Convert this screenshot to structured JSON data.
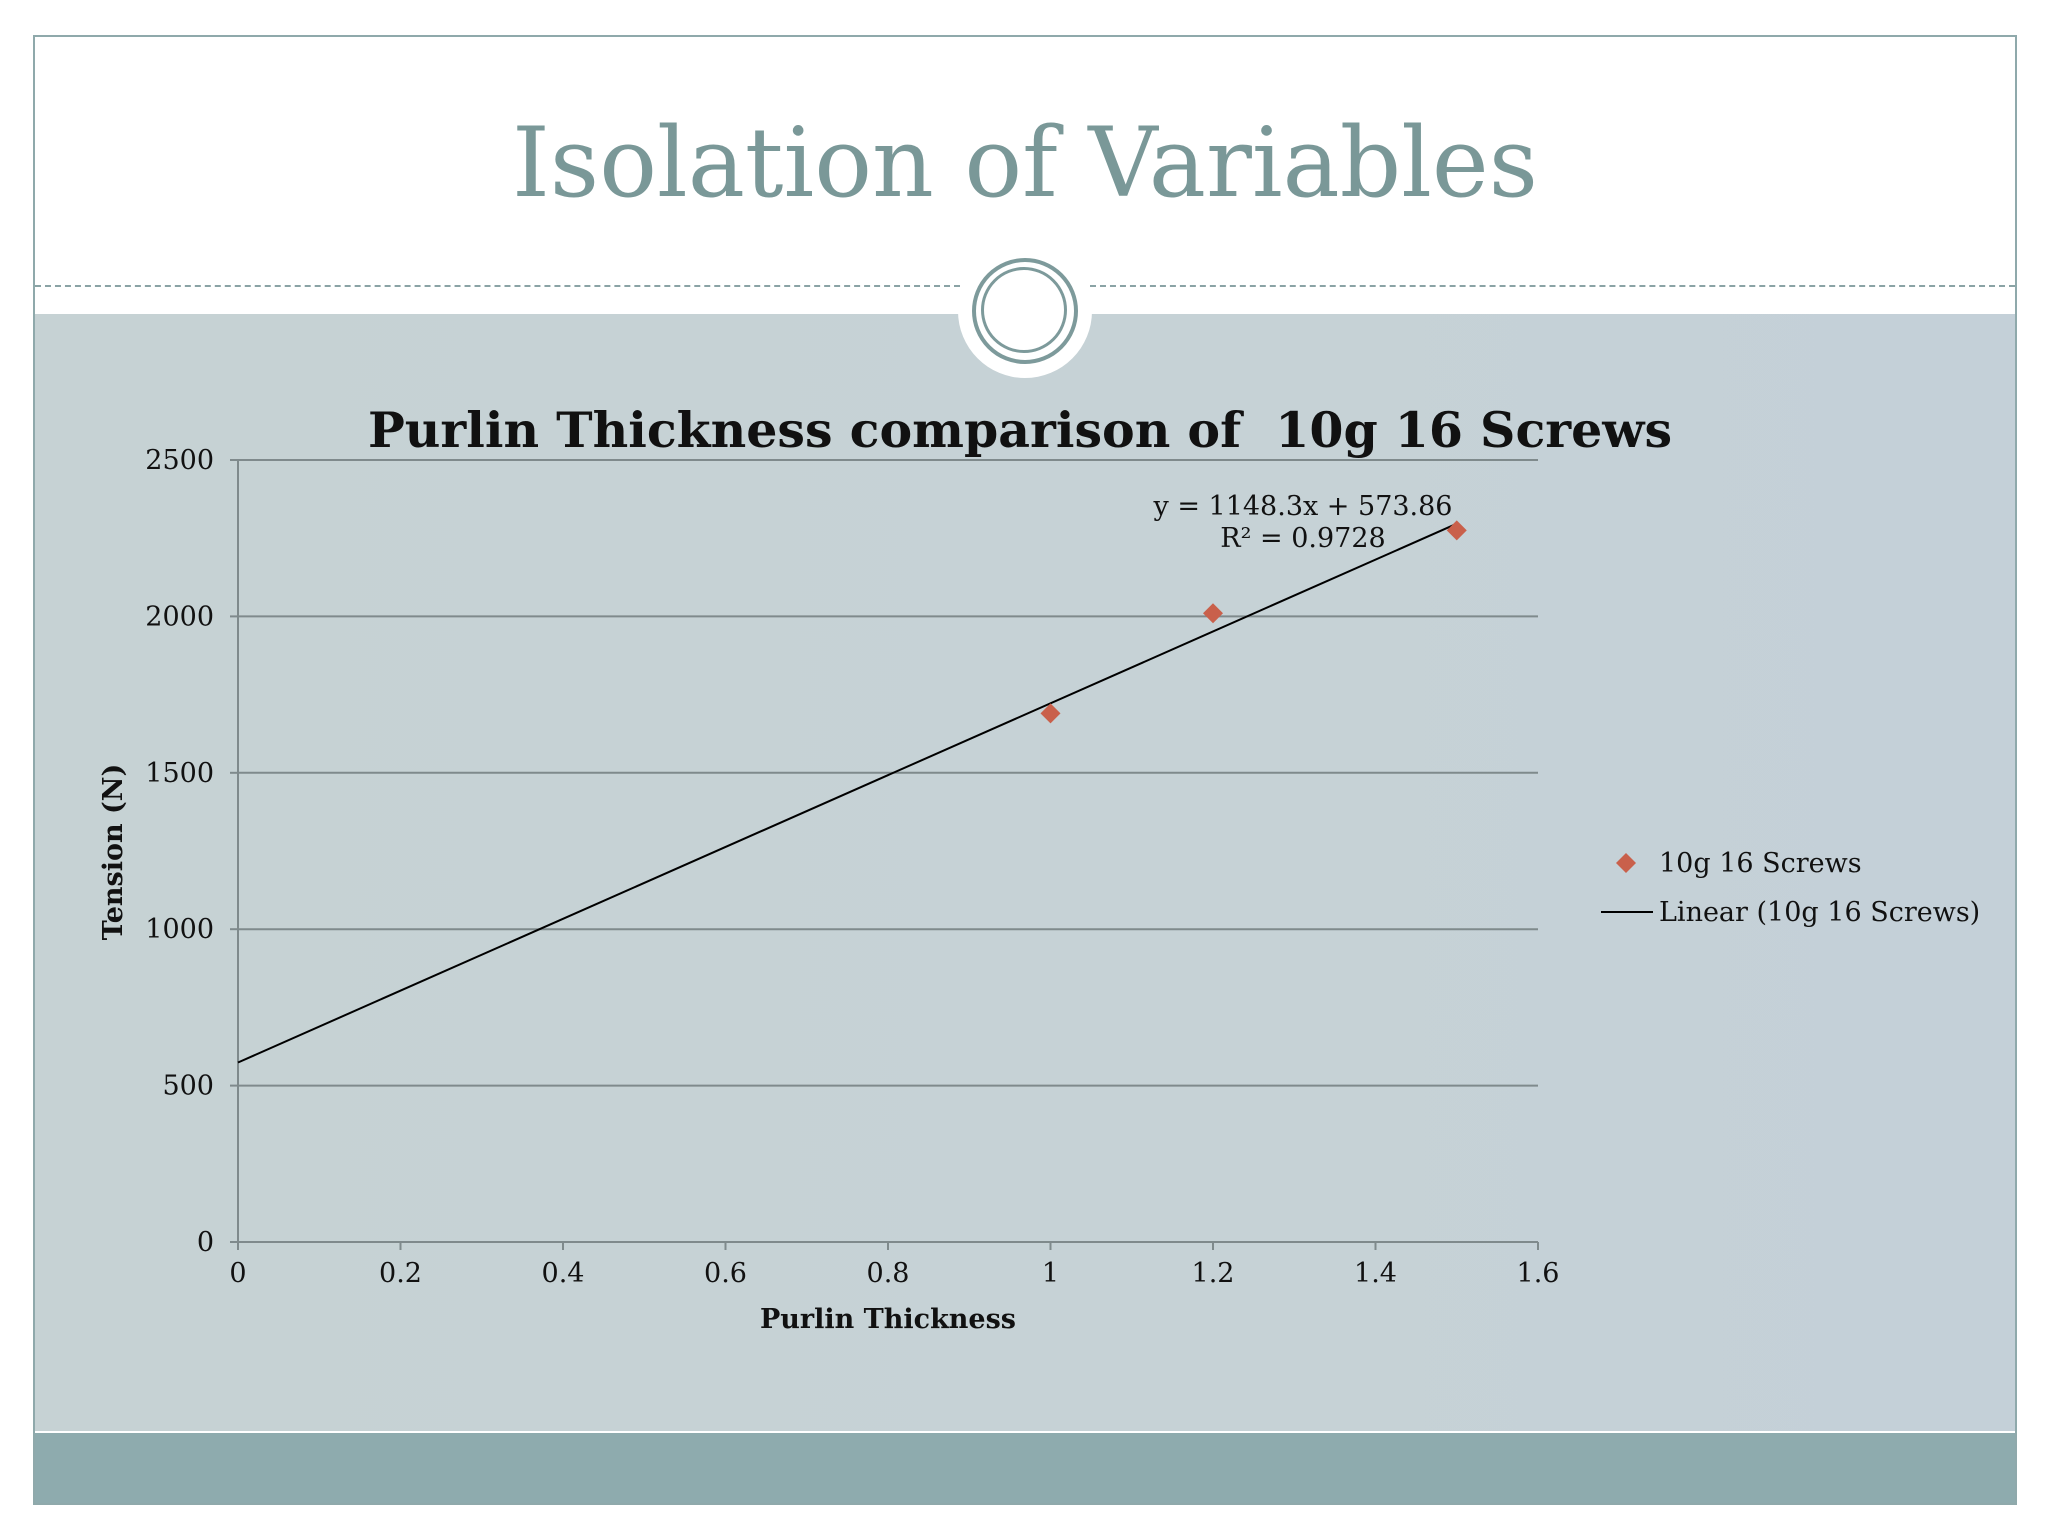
{
  "slide": {
    "title": "Isolation of Variables"
  },
  "colors": {
    "title": "#7a9898",
    "content_bg": "#c6d2d4",
    "footer": "#8eabae",
    "marker": "#c9604b",
    "trendline": "#000000",
    "gridline": "#7f8a8c"
  },
  "chart_data": {
    "type": "scatter",
    "title": "Purlin Thickness comparison of  10g 16 Screws",
    "xlabel": "Purlin Thickness",
    "ylabel": "Tension (N)",
    "xlim": [
      0,
      1.6
    ],
    "ylim": [
      0,
      2500
    ],
    "x_ticks": [
      "0",
      "0.2",
      "0.4",
      "0.6",
      "0.8",
      "1",
      "1.2",
      "1.4",
      "1.6"
    ],
    "x_tick_values": [
      0,
      0.2,
      0.4,
      0.6,
      0.8,
      1,
      1.2,
      1.4,
      1.6
    ],
    "y_ticks": [
      "0",
      "500",
      "1000",
      "1500",
      "2000",
      "2500"
    ],
    "y_tick_values": [
      0,
      500,
      1000,
      1500,
      2000,
      2500
    ],
    "grid": true,
    "legend_position": "right",
    "series": [
      {
        "name": "10g 16 Screws",
        "marker": "diamond",
        "x": [
          1.0,
          1.2,
          1.5
        ],
        "y": [
          1690,
          2010,
          2275
        ]
      }
    ],
    "trendline": {
      "name": "Linear (10g 16 Screws)",
      "slope": 1148.3,
      "intercept": 573.86,
      "x_range": [
        0,
        1.5
      ],
      "equation_label": "y = 1148.3x + 573.86",
      "r2_label": "R² = 0.9728"
    }
  }
}
